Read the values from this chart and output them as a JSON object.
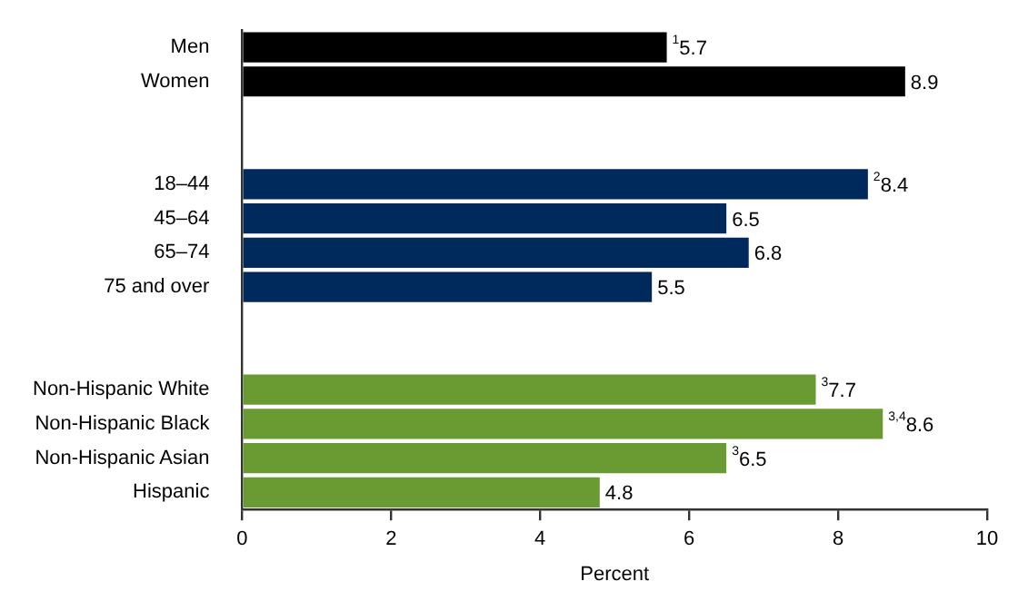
{
  "chart_data": {
    "type": "bar",
    "orientation": "horizontal",
    "xlabel": "Percent",
    "categories": [
      "Men",
      "Women",
      null,
      null,
      "18–44",
      "45–64",
      "65–74",
      "75 and over",
      null,
      null,
      "Non-Hispanic White",
      "Non-Hispanic Black",
      "Non-Hispanic Asian",
      "Hispanic"
    ],
    "values": [
      5.7,
      8.9,
      null,
      null,
      8.4,
      6.5,
      6.8,
      5.5,
      null,
      null,
      7.7,
      8.6,
      6.5,
      4.8
    ],
    "colors": [
      "#000000",
      "#000000",
      null,
      null,
      "#002a5c",
      "#002a5c",
      "#002a5c",
      "#002a5c",
      null,
      null,
      "#6a9a32",
      "#6a9a32",
      "#6a9a32",
      "#6a9a32"
    ],
    "value_labels": [
      "$^{1}$5.7",
      "8.9",
      null,
      null,
      "$^{2}$8.4",
      "6.5",
      "6.8",
      "5.5",
      null,
      null,
      "$^{3}$7.7",
      "$^{3,4}$8.6",
      "$^{3}$6.5",
      "4.8"
    ],
    "xlim": [
      0,
      10
    ],
    "xticks": [
      0,
      2,
      4,
      6,
      8,
      10
    ],
    "grid": false,
    "legend": false
  }
}
